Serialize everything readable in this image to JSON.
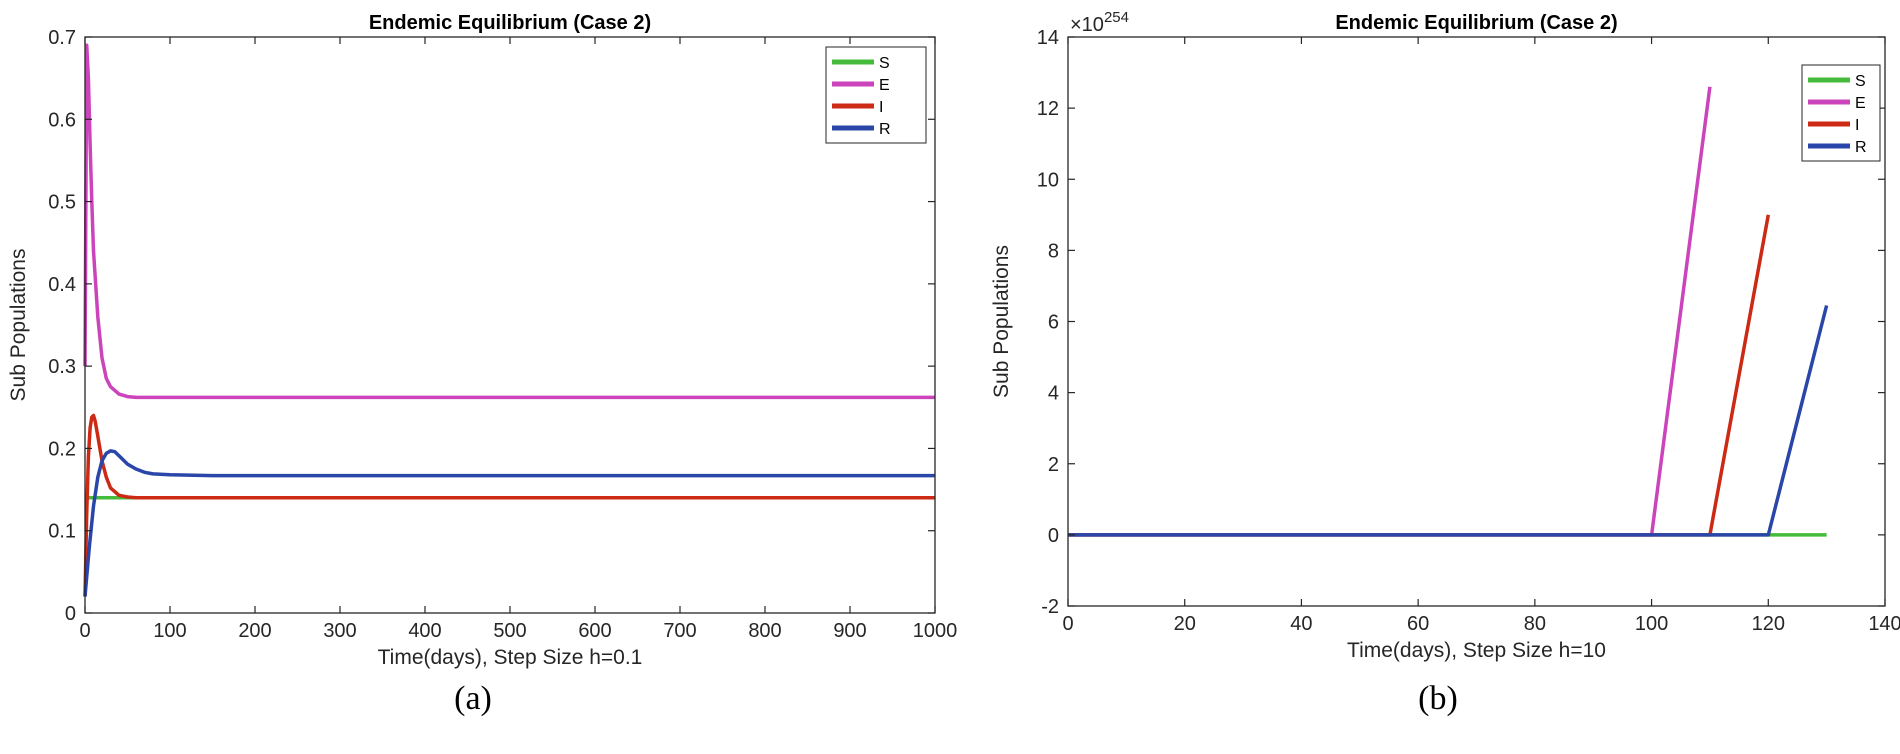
{
  "chart_data": [
    {
      "type": "line",
      "title": "Endemic Equilibrium (Case 2)",
      "xlabel": "Time(days), Step Size h=0.1",
      "ylabel": "Sub Populations",
      "xlim": [
        0,
        1000
      ],
      "ylim": [
        0,
        0.7
      ],
      "xticks": [
        0,
        100,
        200,
        300,
        400,
        500,
        600,
        700,
        800,
        900,
        1000
      ],
      "yticks": [
        0,
        0.1,
        0.2,
        0.3,
        0.4,
        0.5,
        0.6,
        0.7
      ],
      "xtick_labels": [
        "0",
        "100",
        "200",
        "300",
        "400",
        "500",
        "600",
        "700",
        "800",
        "900",
        "1000"
      ],
      "ytick_labels": [
        "0",
        "0.1",
        "0.2",
        "0.3",
        "0.4",
        "0.5",
        "0.6",
        "0.7"
      ],
      "legend_placement": "top-right",
      "grid": false,
      "caption": "(a)",
      "series": [
        {
          "name": "S",
          "color": "#44bb3a",
          "x": [
            0,
            1000
          ],
          "y": [
            0.14,
            0.14
          ]
        },
        {
          "name": "E",
          "color": "#cc44bb",
          "x": [
            0,
            2,
            4,
            6,
            8,
            10,
            15,
            20,
            25,
            30,
            40,
            50,
            60,
            80,
            1000
          ],
          "y": [
            0.3,
            0.69,
            0.65,
            0.57,
            0.5,
            0.44,
            0.36,
            0.31,
            0.285,
            0.275,
            0.266,
            0.263,
            0.262,
            0.262,
            0.262
          ]
        },
        {
          "name": "I",
          "color": "#cc2a14",
          "x": [
            0,
            2,
            4,
            6,
            8,
            10,
            12,
            15,
            20,
            25,
            30,
            40,
            50,
            60,
            80,
            1000
          ],
          "y": [
            0.02,
            0.12,
            0.19,
            0.225,
            0.238,
            0.24,
            0.233,
            0.215,
            0.185,
            0.165,
            0.152,
            0.143,
            0.141,
            0.14,
            0.14,
            0.14
          ]
        },
        {
          "name": "R",
          "color": "#2a46a8",
          "x": [
            0,
            5,
            10,
            15,
            20,
            25,
            30,
            35,
            40,
            50,
            60,
            70,
            80,
            100,
            150,
            1000
          ],
          "y": [
            0.02,
            0.08,
            0.13,
            0.165,
            0.185,
            0.194,
            0.197,
            0.196,
            0.191,
            0.181,
            0.175,
            0.171,
            0.169,
            0.168,
            0.167,
            0.167
          ]
        }
      ]
    },
    {
      "type": "line",
      "title": "Endemic Equilibrium (Case 2)",
      "xlabel": "Time(days), Step Size h=10",
      "ylabel": "Sub Populations",
      "y_multiplier": "×10",
      "y_multiplier_exponent": "254",
      "xlim": [
        0,
        140
      ],
      "ylim": [
        -2,
        14
      ],
      "xticks": [
        0,
        20,
        40,
        60,
        80,
        100,
        120,
        140
      ],
      "yticks": [
        -2,
        0,
        2,
        4,
        6,
        8,
        10,
        12,
        14
      ],
      "xtick_labels": [
        "0",
        "20",
        "40",
        "60",
        "80",
        "100",
        "120",
        "140"
      ],
      "ytick_labels": [
        "-2",
        "0",
        "2",
        "4",
        "6",
        "8",
        "10",
        "12",
        "14"
      ],
      "legend_placement": "top-right",
      "grid": false,
      "caption": "(b)",
      "series": [
        {
          "name": "S",
          "color": "#44bb3a",
          "x": [
            0,
            130
          ],
          "y": [
            0,
            0
          ]
        },
        {
          "name": "E",
          "color": "#cc44bb",
          "x": [
            0,
            100,
            110
          ],
          "y": [
            0,
            0,
            12.6
          ]
        },
        {
          "name": "I",
          "color": "#cc2a14",
          "x": [
            0,
            110,
            120
          ],
          "y": [
            0,
            0,
            9.0
          ]
        },
        {
          "name": "R",
          "color": "#2a46a8",
          "x": [
            0,
            120,
            130
          ],
          "y": [
            0,
            0,
            6.45
          ]
        }
      ]
    }
  ]
}
